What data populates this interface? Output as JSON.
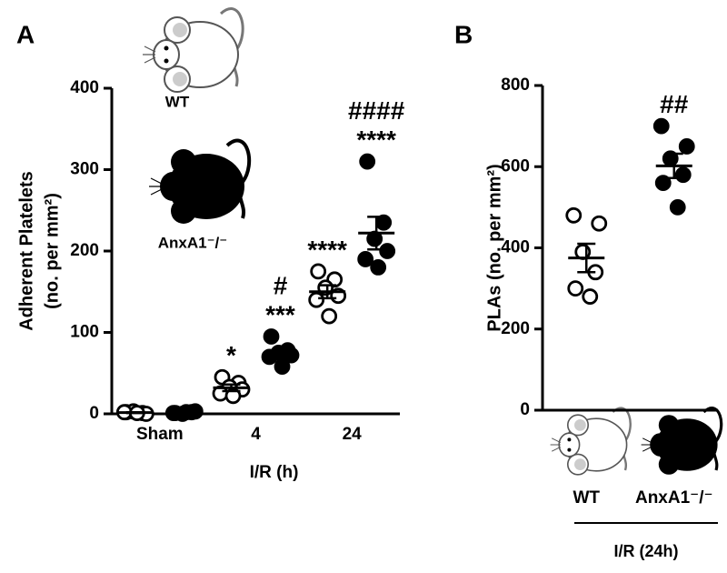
{
  "chart_data": [
    {
      "type": "dot",
      "panel_label": "A",
      "ylabel": [
        "Adherent Platelets",
        "(no. per mm²)"
      ],
      "xlabel": "I/R (h)",
      "categories": [
        "Sham",
        "4",
        "24"
      ],
      "ylim": [
        0,
        400
      ],
      "yticks": [
        0,
        100,
        200,
        300,
        400
      ],
      "series": [
        {
          "name": "WT",
          "color": "#ffffff",
          "values": [
            [
              2,
              1,
              3,
              0,
              2,
              1
            ],
            [
              45,
              38,
              33,
              30,
              25,
              22
            ],
            [
              175,
              165,
              155,
              145,
              140,
              120
            ]
          ],
          "means": [
            1.5,
            32,
            150
          ],
          "sems": [
            0.5,
            4,
            8
          ],
          "annotations": [
            [],
            [
              "*"
            ],
            [
              "****"
            ]
          ]
        },
        {
          "name": "AnxA1⁻/⁻",
          "color": "#000000",
          "values": [
            [
              1,
              2,
              0,
              3,
              1,
              2
            ],
            [
              95,
              78,
              75,
              72,
              70,
              58
            ],
            [
              310,
              235,
              215,
              200,
              190,
              180
            ]
          ],
          "means": [
            1.5,
            73,
            222
          ],
          "sems": [
            0.5,
            5,
            20
          ],
          "annotations": [
            [],
            [
              "***",
              "#"
            ],
            [
              "****",
              "####"
            ]
          ]
        }
      ]
    },
    {
      "type": "dot",
      "panel_label": "B",
      "ylabel": [
        "PLAs (no. per mm²)"
      ],
      "categories": [
        "WT",
        "AnxA1⁻/⁻"
      ],
      "group_label": "I/R (24h)",
      "ylim": [
        0,
        800
      ],
      "yticks": [
        0,
        200,
        400,
        600,
        800
      ],
      "series": [
        {
          "colors": [
            "#ffffff",
            "#000000"
          ],
          "values": [
            [
              480,
              460,
              390,
              340,
              300,
              280
            ],
            [
              700,
              650,
              620,
              580,
              560,
              500
            ]
          ],
          "means": [
            375,
            602
          ],
          "sems": [
            35,
            30
          ],
          "annotations": [
            [],
            [
              "##"
            ]
          ]
        }
      ]
    }
  ]
}
